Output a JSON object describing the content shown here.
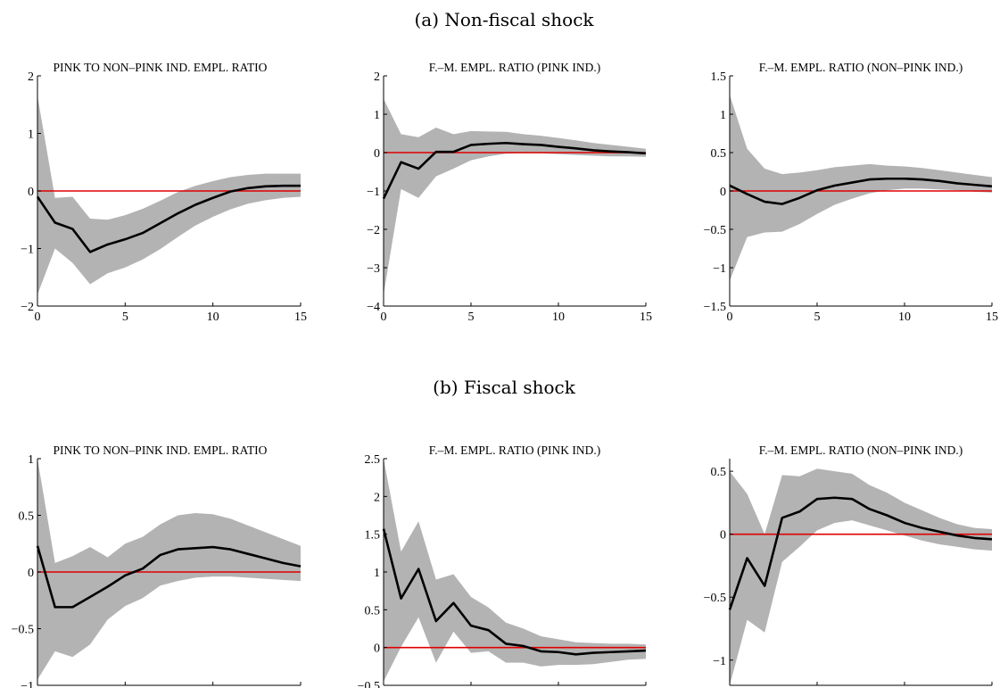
{
  "section_titles": [
    "(a) Non-fiscal shock",
    "(b) Fiscal shock"
  ],
  "colors": {
    "band": "#b3b3b3",
    "line": "#000000",
    "zero": "#e00000"
  },
  "chart_data": [
    {
      "type": "area",
      "title": "PINK TO NON–PINK IND. EMPL. RATIO",
      "x": [
        0,
        1,
        2,
        3,
        4,
        5,
        6,
        7,
        8,
        9,
        10,
        11,
        12,
        13,
        14,
        15
      ],
      "xlim": [
        0,
        15
      ],
      "ylim": [
        -2,
        2
      ],
      "xticks": [
        "0",
        "5",
        "10",
        "15"
      ],
      "yticks": [
        -2,
        -1,
        0,
        1,
        2
      ],
      "ytick_labels": [
        "−2",
        "−1",
        "0",
        "1",
        "2"
      ],
      "series": [
        {
          "role": "median",
          "values": [
            -0.1,
            -0.55,
            -0.66,
            -1.06,
            -0.93,
            -0.84,
            -0.73,
            -0.56,
            -0.39,
            -0.24,
            -0.12,
            -0.01,
            0.05,
            0.08,
            0.09,
            0.09
          ]
        },
        {
          "role": "upper",
          "values": [
            1.65,
            -0.12,
            -0.1,
            -0.48,
            -0.5,
            -0.42,
            -0.31,
            -0.17,
            -0.02,
            0.09,
            0.17,
            0.24,
            0.28,
            0.3,
            0.3,
            0.3
          ]
        },
        {
          "role": "lower",
          "values": [
            -1.8,
            -1.0,
            -1.25,
            -1.62,
            -1.43,
            -1.33,
            -1.19,
            -1.01,
            -0.8,
            -0.6,
            -0.45,
            -0.32,
            -0.22,
            -0.16,
            -0.12,
            -0.1
          ]
        }
      ]
    },
    {
      "type": "area",
      "title": "F.–M. EMPL. RATIO (PINK IND.)",
      "x": [
        0,
        1,
        2,
        3,
        4,
        5,
        6,
        7,
        8,
        9,
        10,
        11,
        12,
        13,
        14,
        15
      ],
      "xlim": [
        0,
        15
      ],
      "ylim": [
        -4,
        2
      ],
      "xticks": [
        "0",
        "5",
        "10",
        "15"
      ],
      "yticks": [
        -4,
        -3,
        -2,
        -1,
        0,
        1,
        2
      ],
      "ytick_labels": [
        "−4",
        "−3",
        "−2",
        "−1",
        "0",
        "1",
        "2"
      ],
      "series": [
        {
          "role": "median",
          "values": [
            -1.2,
            -0.25,
            -0.42,
            0.02,
            0.02,
            0.2,
            0.23,
            0.25,
            0.22,
            0.2,
            0.15,
            0.11,
            0.06,
            0.03,
            0.01,
            -0.02
          ]
        },
        {
          "role": "upper",
          "values": [
            1.4,
            0.48,
            0.4,
            0.65,
            0.48,
            0.56,
            0.55,
            0.54,
            0.48,
            0.44,
            0.38,
            0.32,
            0.25,
            0.2,
            0.15,
            0.1
          ]
        },
        {
          "role": "lower",
          "values": [
            -3.7,
            -0.95,
            -1.18,
            -0.62,
            -0.42,
            -0.2,
            -0.1,
            -0.03,
            -0.02,
            -0.02,
            -0.04,
            -0.06,
            -0.08,
            -0.1,
            -0.1,
            -0.11
          ]
        }
      ]
    },
    {
      "type": "area",
      "title": "F.–M. EMPL. RATIO (NON–PINK IND.)",
      "x": [
        0,
        1,
        2,
        3,
        4,
        5,
        6,
        7,
        8,
        9,
        10,
        11,
        12,
        13,
        14,
        15
      ],
      "xlim": [
        0,
        15
      ],
      "ylim": [
        -1.5,
        1.5
      ],
      "xticks": [
        "0",
        "5",
        "10",
        "15"
      ],
      "yticks": [
        -1.5,
        -1,
        -0.5,
        0,
        0.5,
        1,
        1.5
      ],
      "ytick_labels": [
        "−1.5",
        "−1",
        "−0.5",
        "0",
        "0.5",
        "1",
        "1.5"
      ],
      "series": [
        {
          "role": "median",
          "values": [
            0.07,
            -0.04,
            -0.14,
            -0.17,
            -0.09,
            0.01,
            0.07,
            0.11,
            0.15,
            0.16,
            0.16,
            0.15,
            0.13,
            0.1,
            0.08,
            0.06
          ]
        },
        {
          "role": "upper",
          "values": [
            1.25,
            0.55,
            0.29,
            0.22,
            0.24,
            0.27,
            0.31,
            0.33,
            0.35,
            0.33,
            0.32,
            0.3,
            0.27,
            0.24,
            0.21,
            0.18
          ]
        },
        {
          "role": "lower",
          "values": [
            -1.17,
            -0.6,
            -0.54,
            -0.53,
            -0.43,
            -0.3,
            -0.18,
            -0.1,
            -0.03,
            0.01,
            0.03,
            0.03,
            0.02,
            0.01,
            -0.01,
            -0.02
          ]
        }
      ]
    },
    {
      "type": "area",
      "title": "PINK TO NON–PINK IND. EMPL. RATIO",
      "x": [
        0,
        1,
        2,
        3,
        4,
        5,
        6,
        7,
        8,
        9,
        10,
        11,
        12,
        13,
        14,
        15
      ],
      "xlim": [
        0,
        15
      ],
      "ylim": [
        -1,
        1
      ],
      "xticks": [
        "0",
        "5",
        "10",
        "15"
      ],
      "yticks": [
        -1,
        -0.5,
        0,
        0.5,
        1
      ],
      "ytick_labels": [
        "−1",
        "−0.5",
        "0",
        "0.5",
        "1"
      ],
      "series": [
        {
          "role": "median",
          "values": [
            0.23,
            -0.31,
            -0.31,
            -0.22,
            -0.13,
            -0.03,
            0.03,
            0.15,
            0.2,
            0.21,
            0.22,
            0.2,
            0.16,
            0.12,
            0.08,
            0.05
          ]
        },
        {
          "role": "upper",
          "values": [
            1.0,
            0.08,
            0.14,
            0.22,
            0.13,
            0.25,
            0.31,
            0.42,
            0.5,
            0.52,
            0.51,
            0.47,
            0.41,
            0.35,
            0.29,
            0.23
          ]
        },
        {
          "role": "lower",
          "values": [
            -0.95,
            -0.7,
            -0.75,
            -0.64,
            -0.42,
            -0.3,
            -0.23,
            -0.12,
            -0.08,
            -0.05,
            -0.04,
            -0.04,
            -0.05,
            -0.06,
            -0.07,
            -0.08
          ]
        }
      ]
    },
    {
      "type": "area",
      "title": "F.–M. EMPL. RATIO (PINK IND.)",
      "x": [
        0,
        1,
        2,
        3,
        4,
        5,
        6,
        7,
        8,
        9,
        10,
        11,
        12,
        13,
        14,
        15
      ],
      "xlim": [
        0,
        15
      ],
      "ylim": [
        -0.5,
        2.5
      ],
      "xticks": [
        "0",
        "5",
        "10",
        "15"
      ],
      "yticks": [
        -0.5,
        0,
        0.5,
        1,
        1.5,
        2,
        2.5
      ],
      "ytick_labels": [
        "−0.5",
        "0",
        "0.5",
        "1",
        "1.5",
        "2",
        "2.5"
      ],
      "series": [
        {
          "role": "median",
          "values": [
            1.57,
            0.65,
            1.04,
            0.35,
            0.59,
            0.29,
            0.23,
            0.05,
            0.02,
            -0.05,
            -0.06,
            -0.09,
            -0.07,
            -0.06,
            -0.05,
            -0.04
          ]
        },
        {
          "role": "upper",
          "values": [
            2.5,
            1.27,
            1.67,
            0.9,
            0.97,
            0.67,
            0.53,
            0.33,
            0.25,
            0.15,
            0.11,
            0.07,
            0.06,
            0.05,
            0.05,
            0.04
          ]
        },
        {
          "role": "lower",
          "values": [
            -0.45,
            0.01,
            0.4,
            -0.2,
            0.21,
            -0.07,
            -0.05,
            -0.2,
            -0.2,
            -0.25,
            -0.23,
            -0.23,
            -0.22,
            -0.19,
            -0.16,
            -0.15
          ]
        }
      ]
    },
    {
      "type": "area",
      "title": "F.–M. EMPL. RATIO (NON–PINK IND.)",
      "x": [
        0,
        1,
        2,
        3,
        4,
        5,
        6,
        7,
        8,
        9,
        10,
        11,
        12,
        13,
        14,
        15
      ],
      "xlim": [
        0,
        15
      ],
      "ylim": [
        -1.2,
        0.6
      ],
      "xticks": [
        "0",
        "5",
        "10",
        "15"
      ],
      "yticks": [
        -1,
        -0.5,
        0,
        0.5
      ],
      "ytick_labels": [
        "−1",
        "−0.5",
        "0",
        "0.5"
      ],
      "series": [
        {
          "role": "median",
          "values": [
            -0.6,
            -0.19,
            -0.41,
            0.13,
            0.18,
            0.28,
            0.29,
            0.28,
            0.2,
            0.15,
            0.09,
            0.05,
            0.02,
            -0.01,
            -0.03,
            -0.04
          ]
        },
        {
          "role": "upper",
          "values": [
            0.5,
            0.32,
            0.0,
            0.47,
            0.46,
            0.52,
            0.5,
            0.48,
            0.39,
            0.33,
            0.25,
            0.19,
            0.13,
            0.08,
            0.05,
            0.04
          ]
        },
        {
          "role": "lower",
          "values": [
            -1.2,
            -0.68,
            -0.78,
            -0.22,
            -0.1,
            0.03,
            0.09,
            0.11,
            0.07,
            0.03,
            -0.01,
            -0.05,
            -0.08,
            -0.1,
            -0.12,
            -0.13
          ]
        }
      ]
    }
  ]
}
